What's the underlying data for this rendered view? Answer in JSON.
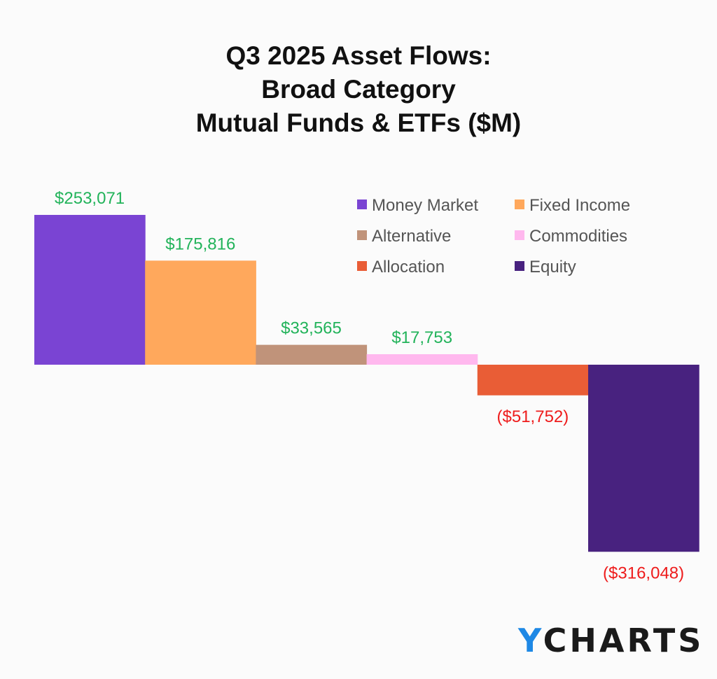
{
  "chart_data": {
    "type": "bar",
    "subtype": "waterfall-style",
    "title": [
      "Q3 2025 Asset Flows:",
      "Broad Category",
      "Mutual Funds & ETFs ($M)"
    ],
    "categories": [
      "Money Market",
      "Fixed Income",
      "Alternative",
      "Commodities",
      "Allocation",
      "Equity"
    ],
    "values": [
      253071,
      175816,
      33565,
      17753,
      -51752,
      -316048
    ],
    "data_labels": [
      "$253,071",
      "$175,816",
      "$33,565",
      "$17,753",
      "($51,752)",
      "($316,048)"
    ],
    "colors": [
      "#7a44d3",
      "#ffa85c",
      "#c0937a",
      "#ffb8ee",
      "#e95d36",
      "#48227f"
    ],
    "label_colors": {
      "positive": "#22b35a",
      "negative": "#ee1c1c"
    },
    "legend_placement": "top-right",
    "grid": false
  },
  "logo": {
    "text_y": "Y",
    "text_rest": "CHARTS"
  }
}
